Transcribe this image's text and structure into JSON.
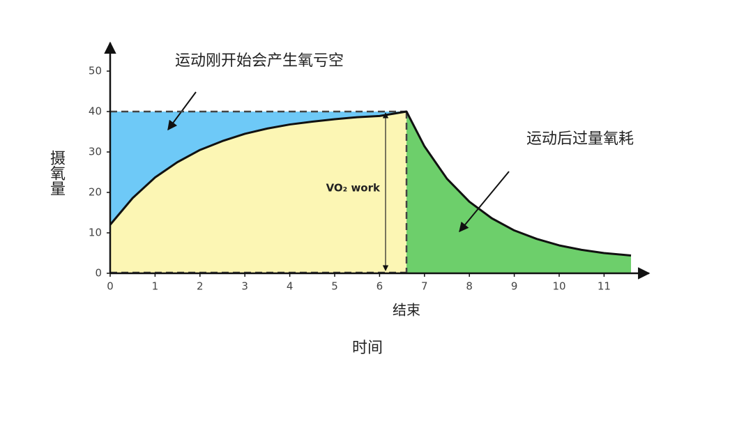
{
  "chart_data": {
    "type": "line",
    "ylabel": "摄氧量",
    "xlabel": "时间",
    "end_label": "结束",
    "vo2_label": "VO₂ work",
    "annotations": [
      "运动刚开始会产生氧亏空",
      "运动后过量氧耗"
    ],
    "x": [
      0,
      0.5,
      1,
      1.5,
      2,
      2.5,
      3,
      3.5,
      4,
      4.5,
      5,
      5.5,
      6,
      6.6,
      7,
      7.5,
      8,
      8.5,
      9,
      9.5,
      10,
      10.5,
      11,
      11.6
    ],
    "series": [
      {
        "color": "#111111",
        "values": [
          12,
          18.6,
          23.7,
          27.5,
          30.5,
          32.7,
          34.5,
          35.8,
          36.8,
          37.5,
          38.1,
          38.6,
          38.9,
          40,
          31.4,
          23.4,
          17.7,
          13.6,
          10.6,
          8.5,
          6.9,
          5.8,
          5.0,
          4.4
        ]
      }
    ],
    "steady_state": 40,
    "end_time": 6.6,
    "colors": {
      "deficit": "#6ec9f7",
      "work": "#fcf6b4",
      "epoc": "#6dcf6b"
    },
    "xlim": [
      0,
      12
    ],
    "ylim": [
      0,
      57
    ],
    "xticks": [
      0,
      1,
      2,
      3,
      4,
      5,
      6,
      7,
      8,
      9,
      10,
      11
    ],
    "yticks": [
      0,
      10,
      20,
      30,
      40,
      50
    ]
  }
}
